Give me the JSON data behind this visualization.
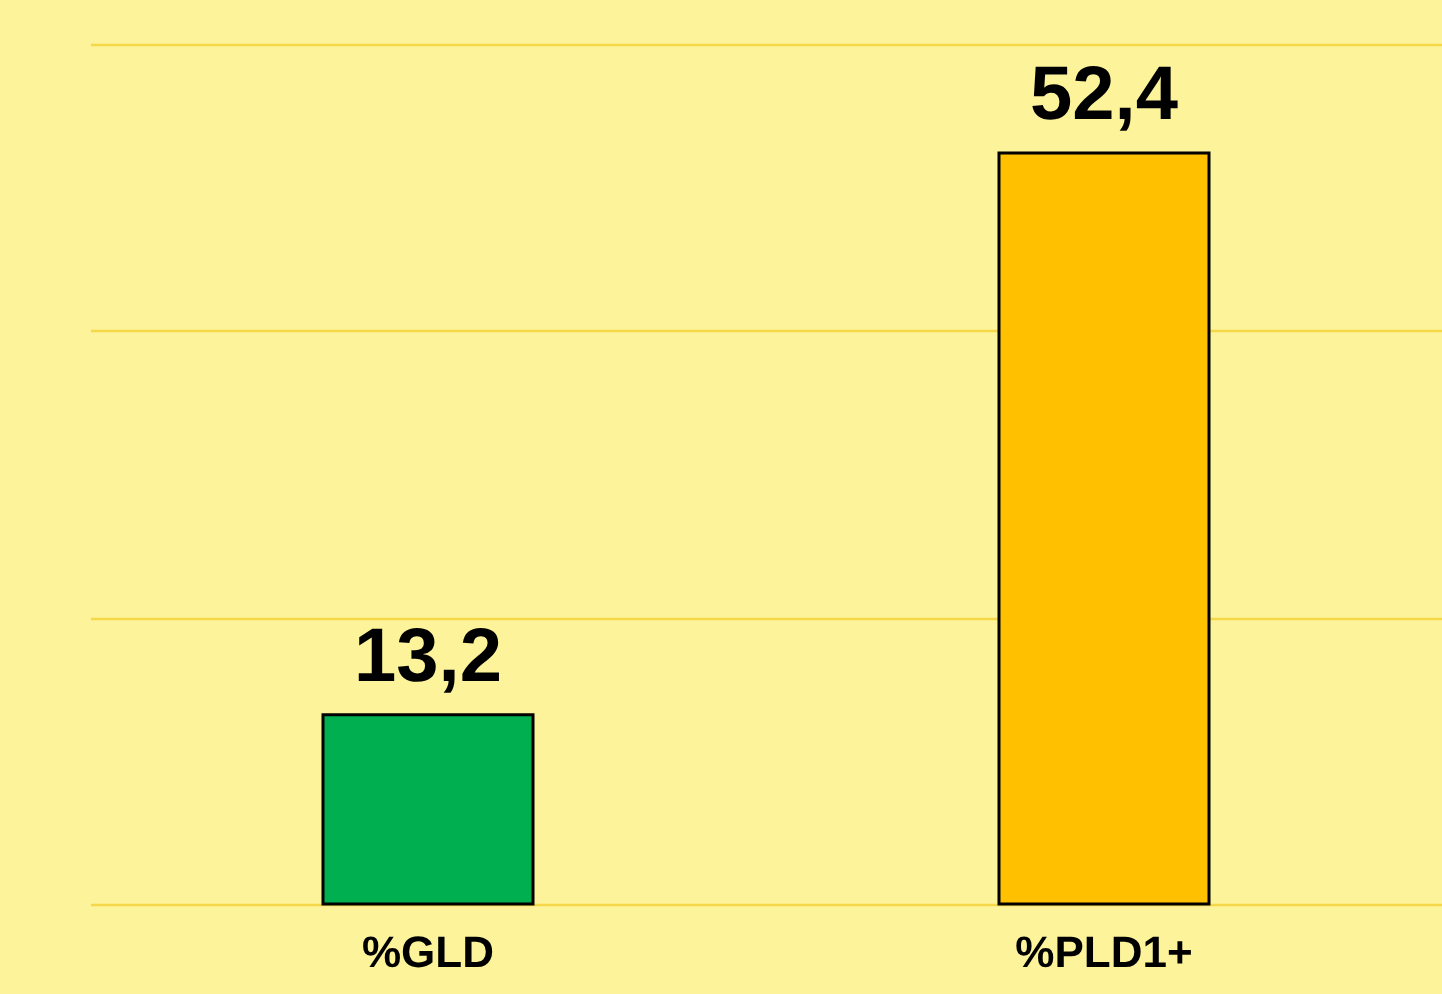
{
  "chart_data": {
    "type": "bar",
    "categories": [
      "%GLD",
      "%PLD1+"
    ],
    "values": [
      13.2,
      52.4
    ],
    "colors": [
      "#00b050",
      "#ffc000"
    ],
    "value_labels": [
      "13,2",
      "52,4"
    ],
    "ylim": [
      0,
      60
    ],
    "yticks": [
      0,
      20,
      40,
      60
    ],
    "grid": "y",
    "tick_labels": "x"
  }
}
